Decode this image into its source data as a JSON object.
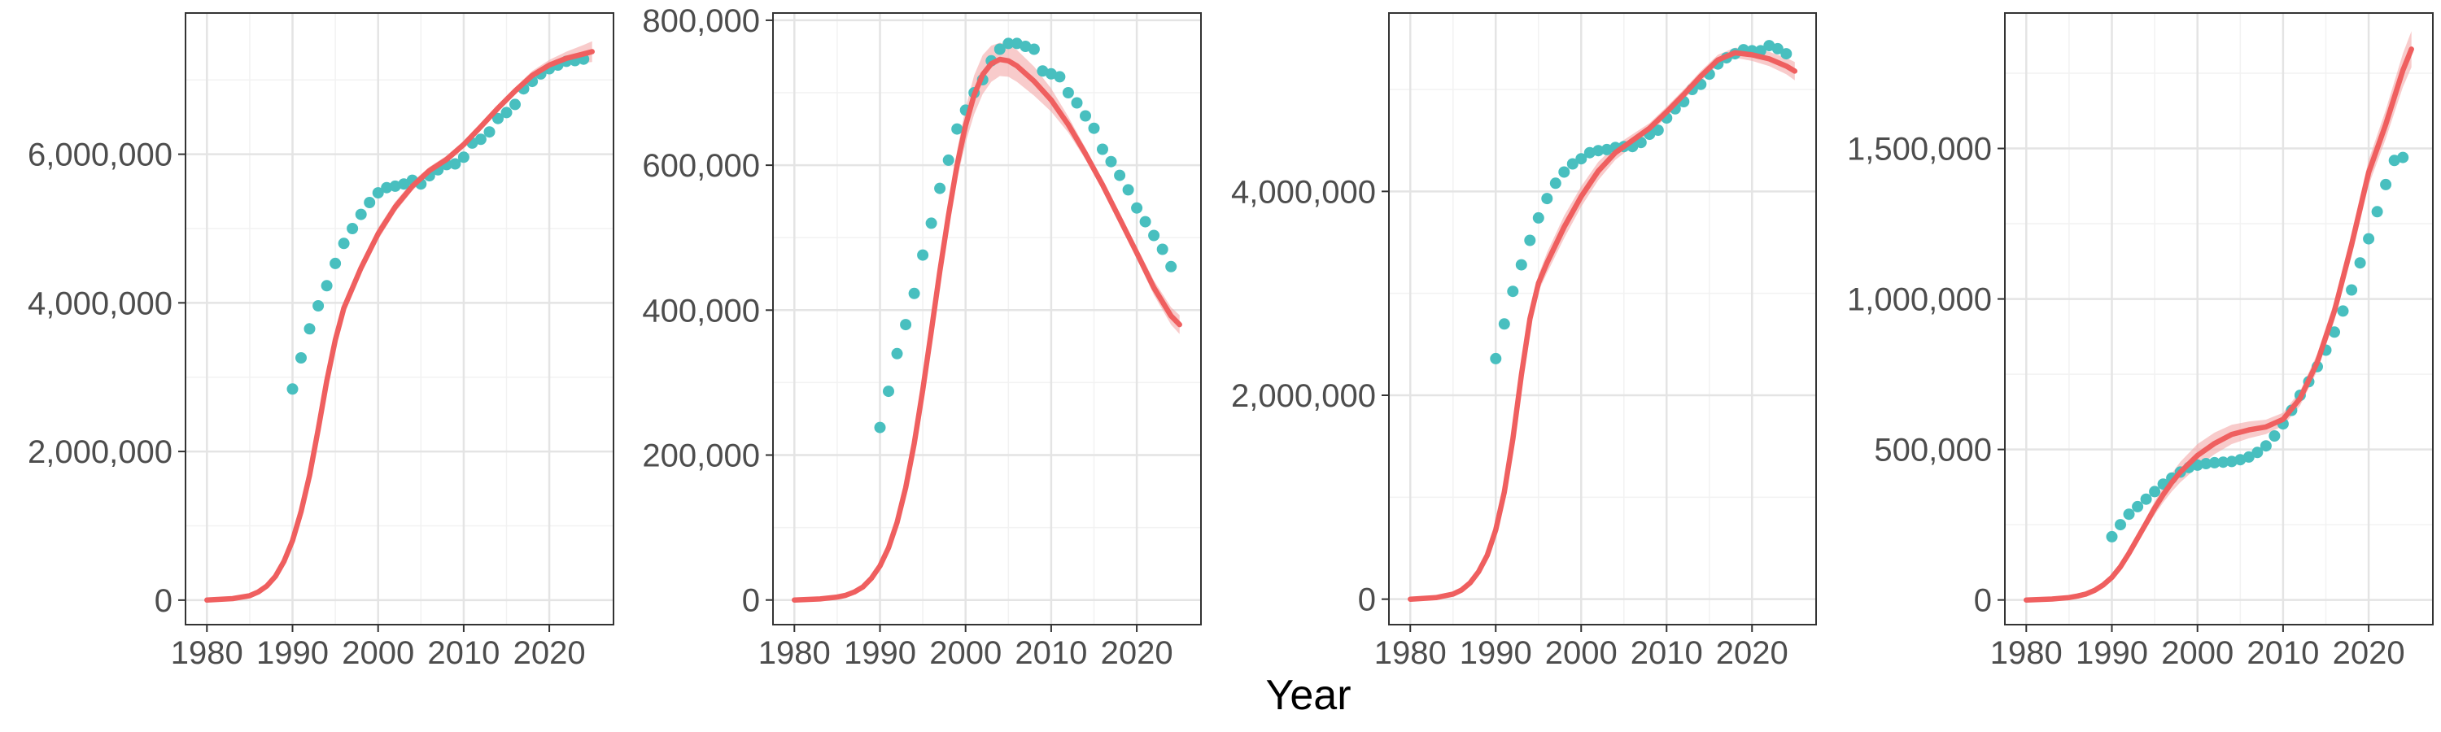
{
  "xlabel": "Year",
  "colors": {
    "fit": "#ef5f5f",
    "band": "#f4a9a9",
    "points": "#48bfbf",
    "grid_major": "#e4e4e4",
    "grid_minor": "#f2f2f2",
    "panel_border": "#333333",
    "text": "#4d4d4d"
  },
  "chart_data": [
    {
      "type": "scatter",
      "title": "",
      "xlabel": "",
      "ylabel": "",
      "xlim": [
        1977.5,
        2027.5
      ],
      "ylim": [
        -330000,
        7900000
      ],
      "xticks": [
        1980,
        1990,
        2000,
        2010,
        2020
      ],
      "xtick_labels": [
        "1980",
        "1990",
        "2000",
        "2010",
        "2020"
      ],
      "yticks": [
        0,
        2000000,
        4000000,
        6000000
      ],
      "ytick_labels": [
        "0",
        "2,000,000",
        "4,000,000",
        "6,000,000"
      ],
      "grid": true,
      "series": [
        {
          "kind": "points",
          "x": [
            1990,
            1991,
            1992,
            1993,
            1994,
            1995,
            1996,
            1997,
            1998,
            1999,
            2000,
            2001,
            2002,
            2003,
            2004,
            2005,
            2006,
            2007,
            2008,
            2009,
            2010,
            2011,
            2012,
            2013,
            2014,
            2015,
            2016,
            2017,
            2018,
            2019,
            2020,
            2021,
            2022,
            2023,
            2024
          ],
          "y": [
            2840000,
            3260000,
            3650000,
            3960000,
            4230000,
            4530000,
            4800000,
            5000000,
            5190000,
            5350000,
            5480000,
            5550000,
            5570000,
            5600000,
            5650000,
            5600000,
            5710000,
            5790000,
            5860000,
            5870000,
            5960000,
            6150000,
            6200000,
            6300000,
            6480000,
            6560000,
            6670000,
            6880000,
            6980000,
            7080000,
            7150000,
            7200000,
            7250000,
            7260000,
            7280000
          ]
        },
        {
          "kind": "fit",
          "x": [
            1980,
            1983,
            1985,
            1986,
            1987,
            1988,
            1989,
            1990,
            1991,
            1992,
            1993,
            1994,
            1995,
            1996,
            1998,
            2000,
            2002,
            2004,
            2006,
            2008,
            2010,
            2012,
            2014,
            2016,
            2018,
            2020,
            2022,
            2024,
            2025
          ],
          "y": [
            0,
            20000,
            60000,
            110000,
            190000,
            320000,
            520000,
            800000,
            1190000,
            1680000,
            2300000,
            2950000,
            3500000,
            3930000,
            4470000,
            4930000,
            5290000,
            5570000,
            5780000,
            5930000,
            6130000,
            6370000,
            6620000,
            6850000,
            7060000,
            7200000,
            7290000,
            7350000,
            7380000
          ],
          "band": [
            0,
            0,
            0,
            0,
            0,
            10000,
            20000,
            30000,
            40000,
            50000,
            60000,
            60000,
            70000,
            80000,
            80000,
            80000,
            70000,
            60000,
            50000,
            50000,
            50000,
            50000,
            50000,
            50000,
            60000,
            70000,
            90000,
            120000,
            140000
          ]
        }
      ]
    },
    {
      "type": "scatter",
      "title": "",
      "xlabel": "",
      "ylabel": "",
      "xlim": [
        1977.5,
        2027.5
      ],
      "ylim": [
        -34000,
        810000
      ],
      "xticks": [
        1980,
        1990,
        2000,
        2010,
        2020
      ],
      "xtick_labels": [
        "1980",
        "1990",
        "2000",
        "2010",
        "2020"
      ],
      "yticks": [
        0,
        200000,
        400000,
        600000,
        800000
      ],
      "ytick_labels": [
        "0",
        "200,000",
        "400,000",
        "600,000",
        "800,000"
      ],
      "grid": true,
      "series": [
        {
          "kind": "points",
          "x": [
            1990,
            1991,
            1992,
            1993,
            1994,
            1995,
            1996,
            1997,
            1998,
            1999,
            2000,
            2001,
            2002,
            2003,
            2004,
            2005,
            2006,
            2007,
            2008,
            2009,
            2010,
            2011,
            2012,
            2013,
            2014,
            2015,
            2016,
            2017,
            2018,
            2019,
            2020,
            2021,
            2022,
            2023,
            2024
          ],
          "y": [
            238000,
            288000,
            340000,
            380000,
            423000,
            476000,
            520000,
            568000,
            607000,
            650000,
            676000,
            700000,
            718000,
            744000,
            760000,
            768000,
            768000,
            764000,
            760000,
            730000,
            726000,
            722000,
            700000,
            686000,
            668000,
            651000,
            622000,
            605000,
            586000,
            566000,
            541000,
            522000,
            503000,
            484000,
            460000
          ],
          "note": ""
        },
        {
          "kind": "fit",
          "x": [
            1980,
            1983,
            1985,
            1986,
            1987,
            1988,
            1989,
            1990,
            1991,
            1992,
            1993,
            1994,
            1995,
            1996,
            1997,
            1998,
            1999,
            2000,
            2001,
            2002,
            2003,
            2004,
            2005,
            2006,
            2008,
            2010,
            2012,
            2014,
            2016,
            2018,
            2020,
            2022,
            2024,
            2025
          ],
          "y": [
            0,
            1500,
            4000,
            6500,
            11000,
            18000,
            30000,
            47000,
            72000,
            107000,
            155000,
            216000,
            290000,
            371000,
            454000,
            531000,
            600000,
            655000,
            697000,
            725000,
            740000,
            746000,
            744000,
            737000,
            716000,
            690000,
            656000,
            616000,
            573000,
            526000,
            479000,
            431000,
            392000,
            380000
          ],
          "band": [
            0,
            0,
            0,
            0,
            0,
            1000,
            2000,
            3000,
            4000,
            5000,
            6000,
            7000,
            8000,
            10000,
            12000,
            16000,
            20000,
            24000,
            27000,
            27000,
            25000,
            23000,
            22000,
            22000,
            20000,
            16000,
            11000,
            8000,
            6000,
            6000,
            8000,
            10000,
            12000,
            13000
          ]
        }
      ]
    },
    {
      "type": "scatter",
      "title": "",
      "xlabel": "",
      "ylabel": "",
      "xlim": [
        1977.5,
        2027.5
      ],
      "ylim": [
        -250000,
        5750000
      ],
      "xticks": [
        1980,
        1990,
        2000,
        2010,
        2020
      ],
      "xtick_labels": [
        "1980",
        "1990",
        "2000",
        "2010",
        "2020"
      ],
      "yticks": [
        0,
        2000000,
        4000000
      ],
      "ytick_labels": [
        "0",
        "2,000,000",
        "4,000,000"
      ],
      "grid": true,
      "series": [
        {
          "kind": "points",
          "x": [
            1990,
            1991,
            1992,
            1993,
            1994,
            1995,
            1996,
            1997,
            1998,
            1999,
            2000,
            2001,
            2002,
            2003,
            2004,
            2005,
            2006,
            2007,
            2008,
            2009,
            2010,
            2011,
            2012,
            2013,
            2014,
            2015,
            2016,
            2017,
            2018,
            2019,
            2020,
            2021,
            2022,
            2023,
            2024
          ],
          "y": [
            2360000,
            2700000,
            3020000,
            3280000,
            3520000,
            3740000,
            3930000,
            4080000,
            4190000,
            4270000,
            4320000,
            4380000,
            4400000,
            4410000,
            4430000,
            4440000,
            4440000,
            4480000,
            4560000,
            4600000,
            4720000,
            4810000,
            4880000,
            5000000,
            5050000,
            5150000,
            5250000,
            5310000,
            5350000,
            5390000,
            5380000,
            5380000,
            5430000,
            5400000,
            5350000
          ]
        },
        {
          "kind": "fit",
          "x": [
            1980,
            1983,
            1985,
            1986,
            1987,
            1988,
            1989,
            1990,
            1991,
            1992,
            1993,
            1994,
            1995,
            1996,
            1998,
            2000,
            2002,
            2004,
            2006,
            2008,
            2010,
            2012,
            2014,
            2016,
            2018,
            2020,
            2022,
            2024,
            2025
          ],
          "y": [
            0,
            15000,
            50000,
            90000,
            160000,
            270000,
            430000,
            680000,
            1050000,
            1570000,
            2200000,
            2750000,
            3100000,
            3300000,
            3650000,
            3950000,
            4200000,
            4380000,
            4500000,
            4620000,
            4780000,
            4950000,
            5130000,
            5290000,
            5360000,
            5340000,
            5300000,
            5230000,
            5180000
          ],
          "band": [
            0,
            0,
            0,
            0,
            0,
            10000,
            20000,
            30000,
            40000,
            50000,
            60000,
            70000,
            80000,
            100000,
            110000,
            100000,
            90000,
            70000,
            60000,
            50000,
            50000,
            50000,
            50000,
            50000,
            50000,
            60000,
            70000,
            80000,
            90000
          ]
        }
      ]
    },
    {
      "type": "scatter",
      "title": "",
      "xlabel": "",
      "ylabel": "",
      "xlim": [
        1977.5,
        2027.5
      ],
      "ylim": [
        -82000,
        1950000
      ],
      "xticks": [
        1980,
        1990,
        2000,
        2010,
        2020
      ],
      "xtick_labels": [
        "1980",
        "1990",
        "2000",
        "2010",
        "2020"
      ],
      "yticks": [
        0,
        500000,
        1000000,
        1500000
      ],
      "ytick_labels": [
        "0",
        "500,000",
        "1,000,000",
        "1,500,000"
      ],
      "grid": true,
      "series": [
        {
          "kind": "points",
          "x": [
            1990,
            1991,
            1992,
            1993,
            1994,
            1995,
            1996,
            1997,
            1998,
            1999,
            2000,
            2001,
            2002,
            2003,
            2004,
            2005,
            2006,
            2007,
            2008,
            2009,
            2010,
            2011,
            2012,
            2013,
            2014,
            2015,
            2016,
            2017,
            2018,
            2019,
            2020,
            2021,
            2022,
            2023,
            2024
          ],
          "y": [
            210000,
            250000,
            285000,
            310000,
            335000,
            360000,
            385000,
            405000,
            425000,
            440000,
            448000,
            453000,
            456000,
            458000,
            460000,
            466000,
            475000,
            490000,
            512000,
            545000,
            585000,
            630000,
            680000,
            725000,
            775000,
            830000,
            890000,
            960000,
            1030000,
            1120000,
            1200000,
            1290000,
            1380000,
            1460000,
            1470000
          ]
        },
        {
          "kind": "fit",
          "x": [
            1980,
            1983,
            1985,
            1986,
            1987,
            1988,
            1989,
            1990,
            1991,
            1992,
            1993,
            1994,
            1995,
            1996,
            1997,
            1998,
            2000,
            2002,
            2004,
            2006,
            2008,
            2010,
            2012,
            2014,
            2016,
            2018,
            2020,
            2022,
            2024,
            2025
          ],
          "y": [
            0,
            3000,
            8000,
            13000,
            20000,
            32000,
            50000,
            75000,
            110000,
            155000,
            205000,
            255000,
            305000,
            350000,
            390000,
            425000,
            480000,
            520000,
            550000,
            565000,
            575000,
            600000,
            670000,
            790000,
            960000,
            1180000,
            1420000,
            1580000,
            1760000,
            1830000
          ],
          "band": [
            0,
            0,
            0,
            0,
            0,
            1000,
            2000,
            4000,
            7000,
            10000,
            14000,
            18000,
            22000,
            26000,
            30000,
            34000,
            38000,
            36000,
            32000,
            28000,
            24000,
            22000,
            24000,
            28000,
            32000,
            38000,
            42000,
            48000,
            56000,
            60000
          ]
        }
      ]
    }
  ]
}
